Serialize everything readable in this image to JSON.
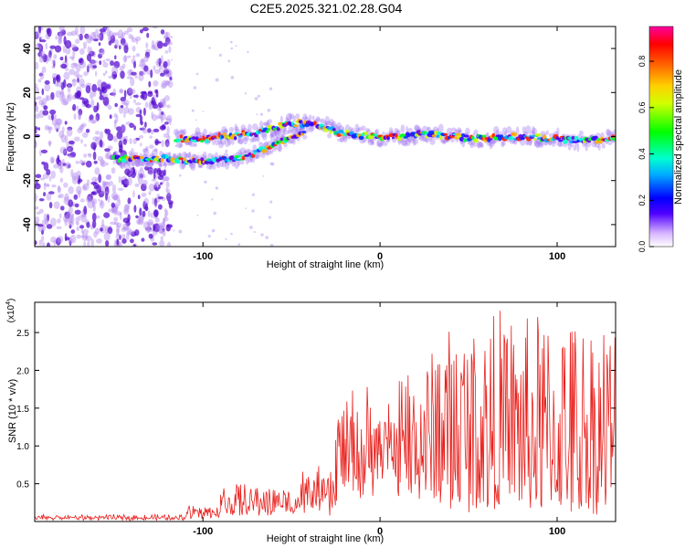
{
  "title": "C2E5.2025.321.02.28.G04",
  "colors": {
    "snr_line": "#e8201c",
    "scatter_purple": "#6a00d8",
    "axis": "#000000",
    "background": "#ffffff"
  },
  "chart_data": [
    {
      "type": "heatmap",
      "name": "spectrogram",
      "xlabel": "Height of straight line (km)",
      "ylabel": "Frequency (Hz)",
      "xlim": [
        -195,
        133
      ],
      "ylim": [
        -50,
        50
      ],
      "x_ticks": [
        -100,
        0,
        100
      ],
      "y_ticks": [
        -40,
        -20,
        0,
        20,
        40
      ],
      "x_tick_labels": [
        "-100",
        "0",
        "100"
      ],
      "y_tick_labels": [
        "-40",
        "-20",
        "0",
        "20",
        "40"
      ],
      "noise_region_x": [
        -195,
        -118
      ],
      "track_main": {
        "x": [
          -115,
          -100,
          -85,
          -70,
          -60,
          -50,
          -42,
          -35,
          -30,
          -25,
          -15,
          -5,
          0,
          10,
          25,
          40,
          55,
          70,
          85,
          100,
          115,
          133
        ],
        "y": [
          -1,
          -1,
          0,
          2,
          4,
          6,
          6,
          5,
          4,
          2,
          1,
          0,
          -1,
          0,
          1,
          0,
          -1,
          0,
          0,
          -1,
          -2,
          -1
        ]
      },
      "track_lower": {
        "x": [
          -150,
          -120,
          -110,
          -95,
          -80,
          -72,
          -60,
          -50,
          -42
        ],
        "y": [
          -10,
          -10,
          -11,
          -11,
          -10,
          -8,
          -4,
          0,
          2
        ]
      },
      "colorbar": {
        "label": "Normalized spectral amplitude",
        "range": [
          0,
          0.95
        ],
        "ticks": [
          0.0,
          0.2,
          0.4,
          0.6,
          0.8
        ],
        "tick_labels": [
          "0.0",
          "0.2",
          "0.4",
          "0.6",
          "0.8"
        ]
      }
    },
    {
      "type": "line",
      "name": "snr",
      "xlabel": "Height of straight line (km)",
      "ylabel": "SNR (10 * v/v)",
      "y_multiplier": "(x10",
      "y_multiplier_exp": "4",
      "xlim": [
        -195,
        133
      ],
      "ylim": [
        0,
        2.9
      ],
      "x_ticks": [
        -100,
        0,
        100
      ],
      "y_ticks": [
        0.5,
        1.0,
        1.5,
        2.0,
        2.5
      ],
      "x_tick_labels": [
        "-100",
        "0",
        "100"
      ],
      "y_tick_labels": [
        "0.5",
        "1.0",
        "1.5",
        "2.0",
        "2.5"
      ],
      "segments": [
        {
          "x_range": [
            -195,
            -110
          ],
          "base": 0.04,
          "amp": 0.05
        },
        {
          "x_range": [
            -110,
            -90
          ],
          "base": 0.08,
          "amp": 0.15
        },
        {
          "x_range": [
            -90,
            -45
          ],
          "base": 0.15,
          "amp": 0.35
        },
        {
          "x_range": [
            -45,
            -25
          ],
          "base": 0.2,
          "amp": 0.5
        },
        {
          "x_range": [
            -25,
            -10
          ],
          "base": 0.5,
          "amp": 1.3
        },
        {
          "x_range": [
            -10,
            10
          ],
          "base": 0.6,
          "amp": 1.1
        },
        {
          "x_range": [
            10,
            30
          ],
          "base": 0.4,
          "amp": 1.9
        },
        {
          "x_range": [
            30,
            80
          ],
          "base": 0.3,
          "amp": 2.5
        },
        {
          "x_range": [
            80,
            133
          ],
          "base": 0.2,
          "amp": 2.6
        }
      ]
    }
  ]
}
